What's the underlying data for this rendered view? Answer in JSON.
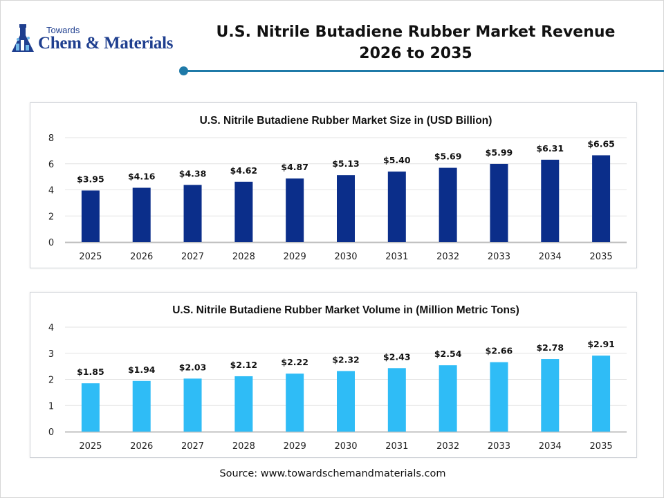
{
  "logo": {
    "small_text": "Towards",
    "big_text": "Chem & Materials"
  },
  "header": {
    "title_line1": "U.S. Nitrile Butadiene Rubber Market Revenue",
    "title_line2": "2026 to 2035"
  },
  "chart_data": [
    {
      "type": "bar",
      "title": "U.S. Nitrile Butadiene Rubber Market Size in (USD Billion)",
      "categories": [
        "2025",
        "2026",
        "2027",
        "2028",
        "2029",
        "2030",
        "2031",
        "2032",
        "2033",
        "2034",
        "2035"
      ],
      "values": [
        3.95,
        4.16,
        4.38,
        4.62,
        4.87,
        5.13,
        5.4,
        5.69,
        5.99,
        6.31,
        6.65
      ],
      "labels": [
        "$3.95",
        "$4.16",
        "$4.38",
        "$4.62",
        "$4.87",
        "$5.13",
        "$5.40",
        "$5.69",
        "$5.99",
        "$6.31",
        "$6.65"
      ],
      "yticks": [
        "0",
        "2",
        "4",
        "6",
        "8"
      ],
      "ylim": [
        0,
        8
      ],
      "grid": true,
      "color": "#0b2e8a"
    },
    {
      "type": "bar",
      "title": "U.S. Nitrile Butadiene Rubber Market Volume in (Million Metric Tons)",
      "categories": [
        "2025",
        "2026",
        "2027",
        "2028",
        "2029",
        "2030",
        "2031",
        "2032",
        "2033",
        "2034",
        "2035"
      ],
      "values": [
        1.85,
        1.94,
        2.03,
        2.12,
        2.22,
        2.32,
        2.43,
        2.54,
        2.66,
        2.78,
        2.91
      ],
      "labels": [
        "$1.85",
        "$1.94",
        "$2.03",
        "$2.12",
        "$2.22",
        "$2.32",
        "$2.43",
        "$2.54",
        "$2.66",
        "$2.78",
        "$2.91"
      ],
      "yticks": [
        "0",
        "1",
        "2",
        "3",
        "4"
      ],
      "ylim": [
        0,
        4
      ],
      "grid": true,
      "color": "#2fbcf6"
    }
  ],
  "footer": {
    "source": "Source: www.towardschemandmaterials.com"
  }
}
